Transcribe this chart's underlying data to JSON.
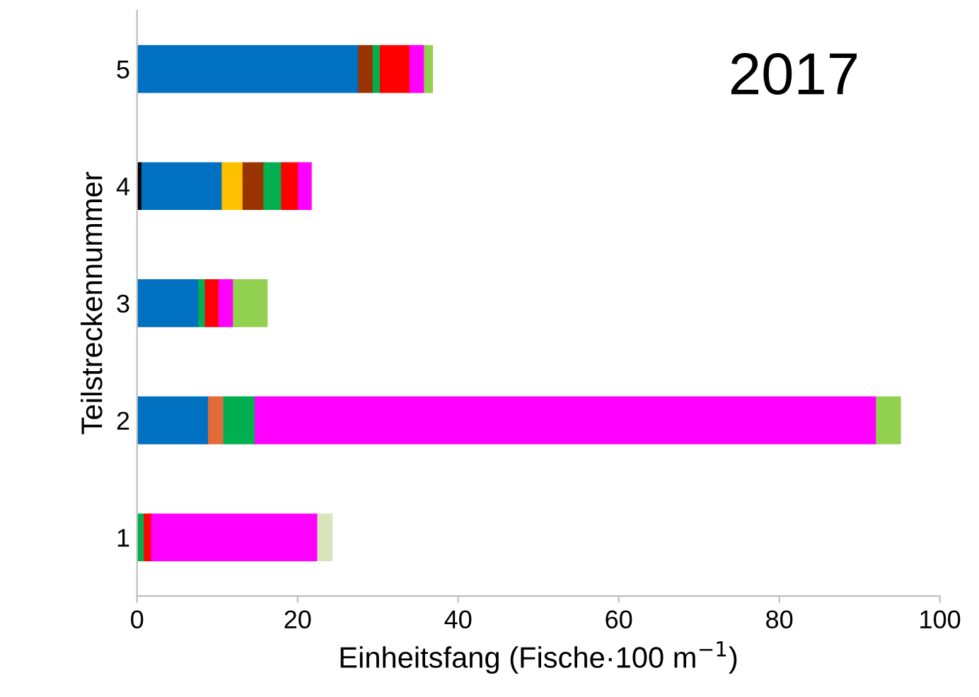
{
  "chart_data": {
    "type": "bar",
    "orientation": "horizontal",
    "stacked": true,
    "categories": [
      "5",
      "4",
      "3",
      "2",
      "1"
    ],
    "xlabel": "Einheitsfang (Fische·100 m$^{−1}$)",
    "ylabel": "Teilstreckennummer",
    "xlim": [
      0,
      100
    ],
    "xticks": [
      0,
      20,
      40,
      60,
      80,
      100
    ],
    "grid": false,
    "legend": false,
    "annotations": [
      "2017"
    ],
    "series": [
      {
        "color": "#000000",
        "values": [
          null,
          0.6,
          null,
          null,
          null
        ]
      },
      {
        "color": "#0070c0",
        "values": [
          27.6,
          10.0,
          7.7,
          8.9,
          null
        ]
      },
      {
        "color": "#e26b3a",
        "values": [
          null,
          null,
          null,
          1.9,
          null
        ]
      },
      {
        "color": "#ffc000",
        "values": [
          null,
          2.6,
          null,
          null,
          null
        ]
      },
      {
        "color": "#993300",
        "values": [
          1.8,
          2.6,
          null,
          null,
          null
        ]
      },
      {
        "color": "#00b050",
        "values": [
          0.9,
          2.2,
          0.8,
          3.9,
          0.9
        ]
      },
      {
        "color": "#ff0000",
        "values": [
          3.7,
          2.1,
          1.7,
          null,
          0.9
        ]
      },
      {
        "color": "#ff00ff",
        "values": [
          1.8,
          1.6,
          1.8,
          77.4,
          20.7
        ]
      },
      {
        "color": "#92d050",
        "values": [
          1.0,
          null,
          4.2,
          3.0,
          null
        ]
      },
      {
        "color": "#d8e4bc",
        "values": [
          null,
          null,
          null,
          null,
          1.8
        ]
      }
    ]
  }
}
